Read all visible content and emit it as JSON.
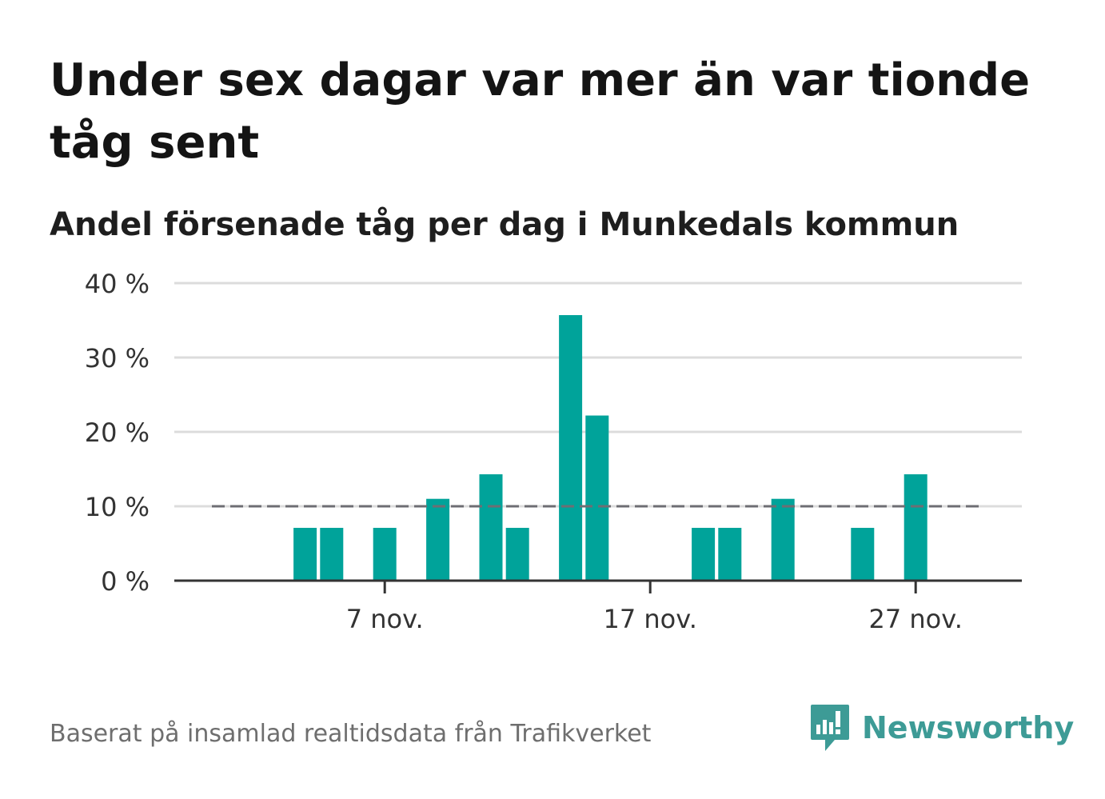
{
  "title": "Under sex dagar var mer än var tionde tåg sent",
  "subtitle": "Andel försenade tåg per dag i Munkedals kommun",
  "footer": "Baserat på insamlad realtidsdata från Trafikverket",
  "brand": {
    "name": "Newsworthy",
    "icon": "newsworthy-logo-icon",
    "color": "#3d9b96"
  },
  "chart_data": {
    "type": "bar",
    "x": [
      "1 nov.",
      "2 nov.",
      "3 nov.",
      "4 nov.",
      "5 nov.",
      "6 nov.",
      "7 nov.",
      "8 nov.",
      "9 nov.",
      "10 nov.",
      "11 nov.",
      "12 nov.",
      "13 nov.",
      "14 nov.",
      "15 nov.",
      "16 nov.",
      "17 nov.",
      "18 nov.",
      "19 nov.",
      "20 nov.",
      "21 nov.",
      "22 nov.",
      "23 nov.",
      "24 nov.",
      "25 nov.",
      "26 nov.",
      "27 nov.",
      "28 nov.",
      "29 nov.",
      "30 nov."
    ],
    "values": [
      0,
      0,
      0,
      7.1,
      7.1,
      0,
      7.1,
      0,
      11,
      0,
      14.3,
      7.1,
      0,
      35.7,
      22.2,
      0,
      0,
      0,
      7.1,
      7.1,
      0,
      11,
      0,
      0,
      7.1,
      0,
      14.3,
      0,
      0,
      0
    ],
    "reference_line": 10,
    "ylim": [
      0,
      40
    ],
    "yticks": [
      0,
      10,
      20,
      30,
      40
    ],
    "ytick_labels": [
      "0 %",
      "10 %",
      "20 %",
      "30 %",
      "40 %"
    ],
    "xticks": [
      "7 nov.",
      "17 nov.",
      "27 nov."
    ],
    "bar_color": "#00a39a",
    "reference_color": "#6e6e73",
    "grid": true
  }
}
